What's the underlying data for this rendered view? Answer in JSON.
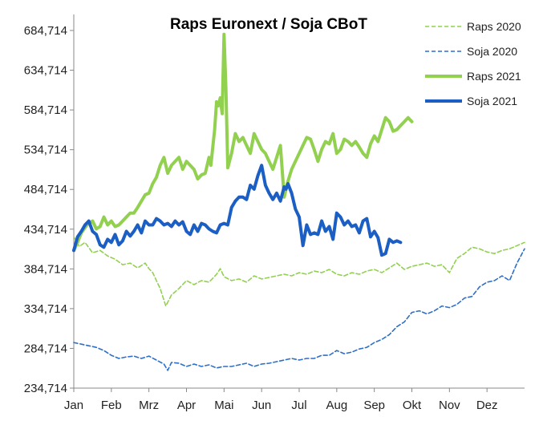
{
  "chart_data": {
    "type": "line",
    "title": "Raps Euronext / Soja CBoT",
    "xlabel": "",
    "ylabel": "",
    "x_tick_labels": [
      "Jan",
      "Feb",
      "Mrz",
      "Apr",
      "Mai",
      "Jun",
      "Jul",
      "Aug",
      "Sep",
      "Okt",
      "Nov",
      "Dez"
    ],
    "y_tick_labels": [
      "234,714",
      "284,714",
      "334,714",
      "384,714",
      "434,714",
      "484,714",
      "534,714",
      "584,714",
      "634,714",
      "684,714"
    ],
    "ylim": [
      234.714,
      684.714
    ],
    "xlim": [
      0,
      12
    ],
    "x_unit_note": "month index, 0 = start of Jan",
    "grid": false,
    "legend_position": "top-right",
    "series": [
      {
        "name": "Raps 2020",
        "color": "#92d050",
        "style": "dashed",
        "x": [
          0.0,
          0.15,
          0.3,
          0.5,
          0.7,
          0.9,
          1.1,
          1.3,
          1.5,
          1.7,
          1.9,
          2.0,
          2.1,
          2.2,
          2.3,
          2.45,
          2.6,
          2.8,
          3.0,
          3.2,
          3.4,
          3.6,
          3.8,
          3.9,
          4.0,
          4.2,
          4.4,
          4.6,
          4.8,
          5.0,
          5.2,
          5.4,
          5.6,
          5.8,
          6.0,
          6.2,
          6.4,
          6.6,
          6.8,
          7.0,
          7.2,
          7.4,
          7.6,
          7.8,
          8.0,
          8.2,
          8.4,
          8.6,
          8.8,
          9.0,
          9.2,
          9.4,
          9.6,
          9.8,
          10.0,
          10.2,
          10.4,
          10.6,
          10.8,
          11.0,
          11.2,
          11.4,
          11.6,
          11.8,
          12.0
        ],
        "values": [
          425,
          413,
          418,
          405,
          408,
          401,
          397,
          390,
          392,
          386,
          392,
          385,
          380,
          370,
          360,
          338,
          352,
          360,
          370,
          365,
          370,
          368,
          378,
          385,
          375,
          370,
          372,
          368,
          376,
          372,
          374,
          376,
          378,
          376,
          380,
          378,
          382,
          380,
          384,
          378,
          376,
          380,
          378,
          382,
          384,
          380,
          386,
          392,
          384,
          388,
          390,
          392,
          388,
          390,
          380,
          398,
          404,
          412,
          410,
          406,
          404,
          408,
          410,
          414,
          418
        ]
      },
      {
        "name": "Soja 2020",
        "color": "#2e6fc7",
        "style": "dashed",
        "x": [
          0.0,
          0.2,
          0.4,
          0.6,
          0.8,
          1.0,
          1.2,
          1.4,
          1.6,
          1.8,
          2.0,
          2.2,
          2.4,
          2.5,
          2.6,
          2.8,
          3.0,
          3.2,
          3.4,
          3.6,
          3.8,
          4.0,
          4.2,
          4.4,
          4.6,
          4.8,
          5.0,
          5.2,
          5.4,
          5.6,
          5.8,
          6.0,
          6.2,
          6.4,
          6.6,
          6.8,
          7.0,
          7.2,
          7.4,
          7.6,
          7.8,
          8.0,
          8.2,
          8.4,
          8.6,
          8.8,
          9.0,
          9.2,
          9.4,
          9.6,
          9.8,
          10.0,
          10.2,
          10.4,
          10.6,
          10.8,
          11.0,
          11.2,
          11.4,
          11.6,
          11.8,
          12.0
        ],
        "values": [
          292,
          290,
          288,
          286,
          282,
          276,
          272,
          274,
          275,
          272,
          275,
          270,
          265,
          257,
          267,
          266,
          262,
          265,
          262,
          264,
          260,
          262,
          262,
          264,
          266,
          262,
          265,
          266,
          268,
          270,
          272,
          270,
          272,
          272,
          276,
          276,
          282,
          278,
          280,
          284,
          286,
          292,
          296,
          302,
          312,
          318,
          330,
          332,
          328,
          332,
          338,
          336,
          340,
          348,
          350,
          362,
          368,
          370,
          376,
          370,
          392,
          410
        ]
      },
      {
        "name": "Raps 2021",
        "color": "#92d050",
        "style": "solid",
        "x": [
          0.0,
          0.1,
          0.2,
          0.35,
          0.5,
          0.6,
          0.7,
          0.8,
          0.9,
          1.0,
          1.1,
          1.2,
          1.3,
          1.4,
          1.5,
          1.6,
          1.7,
          1.8,
          1.9,
          2.0,
          2.1,
          2.2,
          2.3,
          2.4,
          2.5,
          2.6,
          2.7,
          2.8,
          2.9,
          3.0,
          3.1,
          3.2,
          3.3,
          3.4,
          3.5,
          3.6,
          3.65,
          3.7,
          3.75,
          3.8,
          3.85,
          3.9,
          3.95,
          4.0,
          4.05,
          4.1,
          4.2,
          4.3,
          4.4,
          4.5,
          4.6,
          4.7,
          4.8,
          4.9,
          5.0,
          5.1,
          5.2,
          5.3,
          5.4,
          5.5,
          5.6,
          5.7,
          5.8,
          5.9,
          6.0,
          6.1,
          6.2,
          6.3,
          6.4,
          6.5,
          6.6,
          6.7,
          6.8,
          6.9,
          7.0,
          7.1,
          7.2,
          7.3,
          7.4,
          7.5,
          7.6,
          7.7,
          7.8,
          7.9,
          8.0,
          8.1,
          8.2,
          8.3,
          8.4,
          8.5,
          8.6,
          8.7,
          8.8,
          8.9,
          9.0
        ],
        "values": [
          408,
          418,
          430,
          440,
          445,
          435,
          438,
          450,
          440,
          445,
          438,
          440,
          445,
          450,
          455,
          455,
          462,
          470,
          478,
          480,
          492,
          500,
          515,
          525,
          505,
          515,
          520,
          525,
          510,
          520,
          515,
          510,
          498,
          503,
          505,
          525,
          515,
          538,
          560,
          595,
          590,
          600,
          580,
          680,
          610,
          512,
          530,
          555,
          545,
          550,
          540,
          530,
          555,
          545,
          535,
          530,
          520,
          510,
          525,
          540,
          475,
          495,
          510,
          520,
          530,
          540,
          550,
          548,
          535,
          520,
          535,
          545,
          542,
          555,
          530,
          535,
          548,
          545,
          540,
          545,
          538,
          530,
          525,
          542,
          552,
          545,
          560,
          575,
          570,
          558,
          560,
          565,
          570,
          575,
          570
        ]
      },
      {
        "name": "Soja 2021",
        "color": "#1c5fc4",
        "style": "solid",
        "x": [
          0.0,
          0.1,
          0.2,
          0.3,
          0.4,
          0.5,
          0.6,
          0.7,
          0.8,
          0.9,
          1.0,
          1.1,
          1.2,
          1.3,
          1.4,
          1.5,
          1.6,
          1.7,
          1.8,
          1.9,
          2.0,
          2.1,
          2.2,
          2.3,
          2.4,
          2.5,
          2.6,
          2.7,
          2.8,
          2.9,
          3.0,
          3.1,
          3.2,
          3.3,
          3.4,
          3.5,
          3.6,
          3.7,
          3.8,
          3.9,
          4.0,
          4.1,
          4.2,
          4.3,
          4.4,
          4.5,
          4.6,
          4.7,
          4.8,
          4.9,
          5.0,
          5.1,
          5.2,
          5.3,
          5.4,
          5.5,
          5.6,
          5.65,
          5.7,
          5.8,
          5.9,
          6.0,
          6.1,
          6.2,
          6.3,
          6.4,
          6.5,
          6.6,
          6.7,
          6.8,
          6.9,
          7.0,
          7.1,
          7.2,
          7.3,
          7.4,
          7.5,
          7.6,
          7.7,
          7.8,
          7.9,
          8.0,
          8.1,
          8.2,
          8.3,
          8.4,
          8.5,
          8.6,
          8.7
        ],
        "values": [
          408,
          425,
          432,
          440,
          445,
          432,
          428,
          415,
          412,
          422,
          418,
          428,
          415,
          420,
          432,
          426,
          432,
          440,
          430,
          445,
          440,
          440,
          448,
          445,
          440,
          442,
          438,
          445,
          440,
          444,
          432,
          428,
          440,
          432,
          442,
          440,
          435,
          432,
          430,
          440,
          442,
          440,
          462,
          470,
          475,
          475,
          472,
          490,
          485,
          502,
          515,
          490,
          480,
          472,
          480,
          470,
          488,
          485,
          492,
          480,
          460,
          450,
          414,
          440,
          428,
          430,
          428,
          445,
          432,
          438,
          422,
          455,
          450,
          440,
          445,
          438,
          440,
          430,
          445,
          448,
          425,
          432,
          424,
          402,
          404,
          422,
          418,
          420,
          418
        ]
      }
    ]
  }
}
